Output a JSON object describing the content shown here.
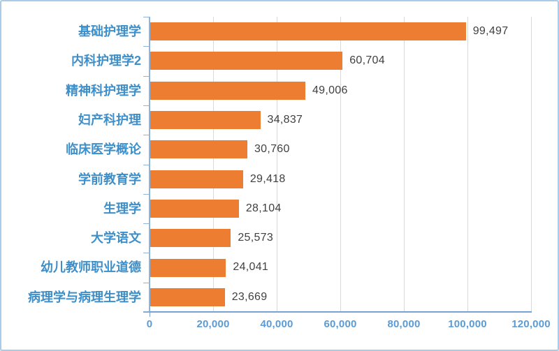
{
  "chart_data": {
    "type": "bar",
    "orientation": "horizontal",
    "title": "",
    "categories": [
      "基础护理学",
      "内科护理学2",
      "精神科护理学",
      "妇产科护理",
      "临床医学概论",
      "学前教育学",
      "生理学",
      "大学语文",
      "幼儿教师职业道德",
      "病理学与病理生理学"
    ],
    "values": [
      99497,
      60704,
      49006,
      34837,
      30760,
      29418,
      28104,
      25573,
      24041,
      23669
    ],
    "value_labels": [
      "99,497",
      "60,704",
      "49,006",
      "34,837",
      "30,760",
      "29,418",
      "28,104",
      "25,573",
      "24,041",
      "23,669"
    ],
    "xlabel": "",
    "ylabel": "",
    "xlim": [
      0,
      120000
    ],
    "x_ticks": [
      0,
      20000,
      40000,
      60000,
      80000,
      100000,
      120000
    ],
    "x_tick_labels": [
      "0",
      "20,000",
      "40,000",
      "60,000",
      "80,000",
      "100,000",
      "120,000"
    ],
    "grid": true,
    "legend": false
  },
  "colors": {
    "bar": "#ed7d31",
    "category_label": "#3e8fc9",
    "value_label": "#404040",
    "axis_tick_label": "#5b9bd5",
    "gridline": "#d9d9d9",
    "y_axis_line": "#8fb4dc",
    "x_axis_line": "#76a3d3",
    "frame_border": "#a9cbe8"
  }
}
